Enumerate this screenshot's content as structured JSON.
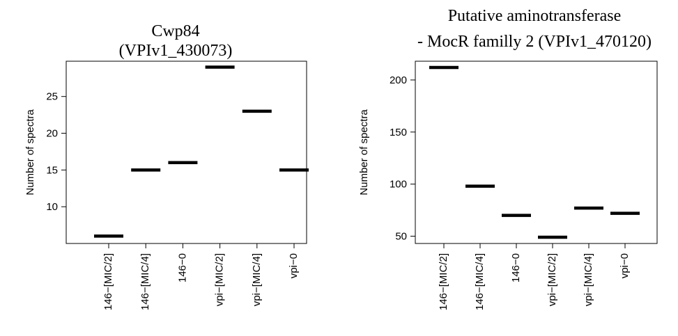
{
  "chart_data": [
    {
      "type": "scatter",
      "marker": "horizontal-bar",
      "title": [
        "Cwp84",
        "(VPIv1_430073)"
      ],
      "ylabel": "Number of spectra",
      "categories": [
        "146−[MIC/2]",
        "146−[MIC/4]",
        "146−0",
        "vpi−[MIC/2]",
        "vpi−[MIC/4]",
        "vpi−0"
      ],
      "values": [
        6,
        15,
        16,
        29,
        23,
        15
      ],
      "yticks": [
        10,
        15,
        20,
        25
      ],
      "ylim": [
        5,
        29.8
      ],
      "grid": false
    },
    {
      "type": "scatter",
      "marker": "horizontal-bar",
      "title": [
        "Putative aminotransferase",
        "- MocR familly 2 (VPIv1_470120)"
      ],
      "ylabel": "Number of spectra",
      "categories": [
        "146−[MIC/2]",
        "146−[MIC/4]",
        "146−0",
        "vpi−[MIC/2]",
        "vpi−[MIC/4]",
        "vpi−0"
      ],
      "values": [
        212,
        98,
        70,
        49,
        77,
        72
      ],
      "yticks": [
        50,
        100,
        150,
        200
      ],
      "ylim": [
        43,
        218
      ],
      "grid": false
    }
  ]
}
